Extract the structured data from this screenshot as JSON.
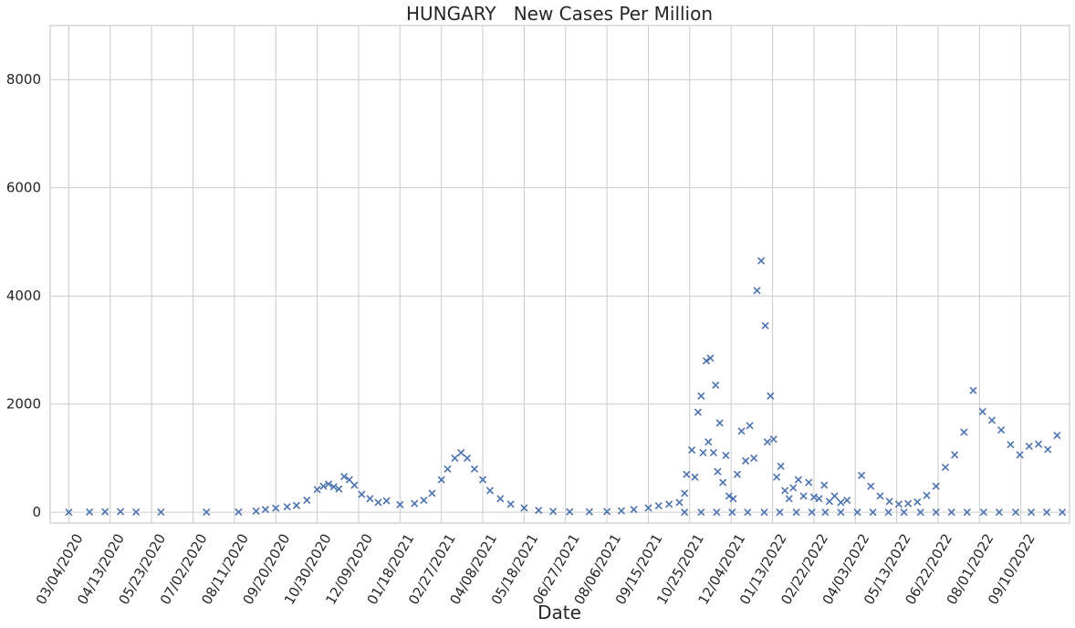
{
  "chart_data": {
    "type": "scatter",
    "title": "HUNGARY   New Cases Per Million",
    "xlabel": "Date",
    "ylabel": "",
    "ylim": [
      -200,
      9000
    ],
    "yticks": [
      0,
      2000,
      4000,
      6000,
      8000
    ],
    "grid": true,
    "marker": "x",
    "color": "#4c72b0",
    "x_range": [
      "02/15/2020",
      "10/27/2022"
    ],
    "xticks": [
      "03/04/2020",
      "04/13/2020",
      "05/23/2020",
      "07/02/2020",
      "08/11/2020",
      "09/20/2020",
      "10/30/2020",
      "12/09/2020",
      "01/18/2021",
      "02/27/2021",
      "04/08/2021",
      "05/18/2021",
      "06/27/2021",
      "08/06/2021",
      "09/15/2021",
      "10/25/2021",
      "12/04/2021",
      "01/13/2022",
      "02/22/2022",
      "04/03/2022",
      "05/13/2022",
      "06/22/2022",
      "08/01/2022",
      "09/10/2022"
    ],
    "series": [
      {
        "points": [
          [
            "03/04/2020",
            0
          ],
          [
            "03/24/2020",
            3
          ],
          [
            "04/08/2020",
            8
          ],
          [
            "04/23/2020",
            10
          ],
          [
            "05/08/2020",
            4
          ],
          [
            "06/01/2020",
            1
          ],
          [
            "07/15/2020",
            1
          ],
          [
            "08/15/2020",
            4
          ],
          [
            "09/01/2020",
            20
          ],
          [
            "09/10/2020",
            50
          ],
          [
            "09/20/2020",
            75
          ],
          [
            "10/01/2020",
            100
          ],
          [
            "10/10/2020",
            125
          ],
          [
            "10/20/2020",
            220
          ],
          [
            "10/30/2020",
            420
          ],
          [
            "11/05/2020",
            480
          ],
          [
            "11/10/2020",
            520
          ],
          [
            "11/15/2020",
            470
          ],
          [
            "11/20/2020",
            430
          ],
          [
            "11/25/2020",
            660
          ],
          [
            "11/30/2020",
            600
          ],
          [
            "12/05/2020",
            500
          ],
          [
            "12/12/2020",
            330
          ],
          [
            "12/20/2020",
            250
          ],
          [
            "12/28/2020",
            180
          ],
          [
            "01/05/2021",
            210
          ],
          [
            "01/18/2021",
            140
          ],
          [
            "02/01/2021",
            160
          ],
          [
            "02/10/2021",
            220
          ],
          [
            "02/18/2021",
            350
          ],
          [
            "02/27/2021",
            600
          ],
          [
            "03/05/2021",
            800
          ],
          [
            "03/12/2021",
            1000
          ],
          [
            "03/18/2021",
            1100
          ],
          [
            "03/24/2021",
            1000
          ],
          [
            "03/31/2021",
            800
          ],
          [
            "04/08/2021",
            600
          ],
          [
            "04/15/2021",
            400
          ],
          [
            "04/25/2021",
            250
          ],
          [
            "05/05/2021",
            150
          ],
          [
            "05/18/2021",
            80
          ],
          [
            "06/01/2021",
            35
          ],
          [
            "06/15/2021",
            15
          ],
          [
            "07/01/2021",
            8
          ],
          [
            "07/20/2021",
            8
          ],
          [
            "08/06/2021",
            12
          ],
          [
            "08/20/2021",
            25
          ],
          [
            "09/01/2021",
            50
          ],
          [
            "09/15/2021",
            80
          ],
          [
            "09/25/2021",
            120
          ],
          [
            "10/05/2021",
            150
          ],
          [
            "10/15/2021",
            180
          ],
          [
            "10/20/2021",
            350
          ],
          [
            "10/22/2021",
            700
          ],
          [
            "10/27/2021",
            1150
          ],
          [
            "10/30/2021",
            650
          ],
          [
            "11/02/2021",
            1850
          ],
          [
            "11/05/2021",
            2150
          ],
          [
            "11/07/2021",
            1100
          ],
          [
            "11/10/2021",
            2800
          ],
          [
            "11/12/2021",
            1300
          ],
          [
            "11/14/2021",
            2850
          ],
          [
            "11/17/2021",
            1100
          ],
          [
            "11/19/2021",
            2350
          ],
          [
            "11/21/2021",
            750
          ],
          [
            "11/23/2021",
            1650
          ],
          [
            "11/26/2021",
            550
          ],
          [
            "11/29/2021",
            1050
          ],
          [
            "12/02/2021",
            300
          ],
          [
            "12/06/2021",
            250
          ],
          [
            "12/10/2021",
            700
          ],
          [
            "12/14/2021",
            1500
          ],
          [
            "12/18/2021",
            950
          ],
          [
            "12/22/2021",
            1600
          ],
          [
            "12/26/2021",
            1000
          ],
          [
            "12/29/2021",
            4100
          ],
          [
            "01/02/2022",
            4650
          ],
          [
            "01/06/2022",
            3450
          ],
          [
            "01/08/2022",
            1300
          ],
          [
            "01/11/2022",
            2150
          ],
          [
            "01/14/2022",
            1350
          ],
          [
            "01/17/2022",
            650
          ],
          [
            "01/21/2022",
            850
          ],
          [
            "01/25/2022",
            400
          ],
          [
            "01/29/2022",
            250
          ],
          [
            "02/02/2022",
            450
          ],
          [
            "02/07/2022",
            600
          ],
          [
            "02/12/2022",
            300
          ],
          [
            "02/17/2022",
            550
          ],
          [
            "02/22/2022",
            280
          ],
          [
            "02/27/2022",
            250
          ],
          [
            "03/04/2022",
            500
          ],
          [
            "03/09/2022",
            200
          ],
          [
            "03/14/2022",
            300
          ],
          [
            "03/20/2022",
            180
          ],
          [
            "03/26/2022",
            220
          ],
          [
            "04/09/2022",
            680
          ],
          [
            "04/18/2022",
            480
          ],
          [
            "04/27/2022",
            300
          ],
          [
            "05/06/2022",
            200
          ],
          [
            "05/15/2022",
            150
          ],
          [
            "05/24/2022",
            160
          ],
          [
            "06/02/2022",
            190
          ],
          [
            "06/11/2022",
            310
          ],
          [
            "06/20/2022",
            480
          ],
          [
            "06/29/2022",
            830
          ],
          [
            "07/08/2022",
            1060
          ],
          [
            "07/17/2022",
            1480
          ],
          [
            "07/26/2022",
            2250
          ],
          [
            "08/04/2022",
            1860
          ],
          [
            "08/13/2022",
            1700
          ],
          [
            "08/22/2022",
            1520
          ],
          [
            "08/31/2022",
            1250
          ],
          [
            "09/09/2022",
            1060
          ],
          [
            "09/18/2022",
            1220
          ],
          [
            "09/27/2022",
            1260
          ],
          [
            "10/06/2022",
            1160
          ],
          [
            "10/15/2022",
            1420
          ],
          [
            "10/20/2021",
            0
          ],
          [
            "11/05/2021",
            0
          ],
          [
            "11/20/2021",
            0
          ],
          [
            "12/05/2021",
            0
          ],
          [
            "12/20/2021",
            0
          ],
          [
            "01/05/2022",
            0
          ],
          [
            "01/20/2022",
            0
          ],
          [
            "02/05/2022",
            0
          ],
          [
            "02/20/2022",
            0
          ],
          [
            "03/05/2022",
            0
          ],
          [
            "03/20/2022",
            0
          ],
          [
            "04/05/2022",
            0
          ],
          [
            "04/20/2022",
            0
          ],
          [
            "05/05/2022",
            0
          ],
          [
            "05/20/2022",
            0
          ],
          [
            "06/05/2022",
            0
          ],
          [
            "06/20/2022",
            0
          ],
          [
            "07/05/2022",
            0
          ],
          [
            "07/20/2022",
            0
          ],
          [
            "08/05/2022",
            0
          ],
          [
            "08/20/2022",
            0
          ],
          [
            "09/05/2022",
            0
          ],
          [
            "09/20/2022",
            0
          ],
          [
            "10/05/2022",
            0
          ],
          [
            "10/20/2022",
            0
          ]
        ]
      }
    ]
  }
}
